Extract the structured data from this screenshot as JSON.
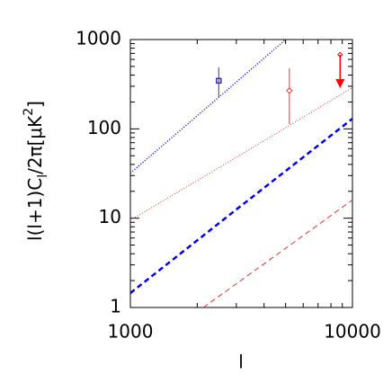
{
  "chart_data": {
    "type": "loglog",
    "xlabel": "l",
    "ylabel_parts": [
      "l(l+1)C",
      "l",
      "/2π[μK",
      "2",
      "]"
    ],
    "xlim": [
      1000,
      10000
    ],
    "ylim": [
      1,
      1000
    ],
    "xticks": [
      1000,
      10000
    ],
    "yticks": [
      1,
      10,
      100,
      1000
    ],
    "xminor_ticks": [
      2000,
      3000,
      4000,
      5000,
      6000,
      7000,
      8000,
      9000
    ],
    "yminor_ticks": [
      2,
      3,
      4,
      5,
      6,
      7,
      8,
      9,
      20,
      30,
      40,
      50,
      60,
      70,
      80,
      90,
      200,
      300,
      400,
      500,
      600,
      700,
      800,
      900
    ],
    "log_x": true,
    "log_y": true,
    "series": [
      {
        "color": "#0000ff",
        "style": "dotted",
        "width": 1.5,
        "x": [
          1000,
          2000,
          5000
        ],
        "values": [
          32,
          140,
          1000
        ]
      },
      {
        "color": "#e8342a",
        "style": "dotted",
        "width": 1,
        "x": [
          1000,
          3000,
          10000
        ],
        "values": [
          9.5,
          48,
          290
        ]
      },
      {
        "color": "#0000ff",
        "style": "dashed",
        "width": 2.5,
        "x": [
          1000,
          3000,
          10000
        ],
        "values": [
          1.45,
          12.5,
          130
        ]
      },
      {
        "color": "#e8342a",
        "style": "dashed",
        "width": 1,
        "x": [
          2130,
          5000,
          10000
        ],
        "values": [
          1,
          4.6,
          16
        ]
      }
    ],
    "points": [
      {
        "marker": "square",
        "color": "#3b2fb5",
        "x": 2500,
        "value": 346,
        "low": 227,
        "high": 490
      },
      {
        "marker": "diamond",
        "color": "#e8342a",
        "x": 5200,
        "value": 268,
        "low": 113,
        "high": 478
      }
    ],
    "upper_limits": [
      {
        "color": "#ff0000",
        "x": 8800,
        "value": 677,
        "arrow_to": 286
      }
    ]
  }
}
